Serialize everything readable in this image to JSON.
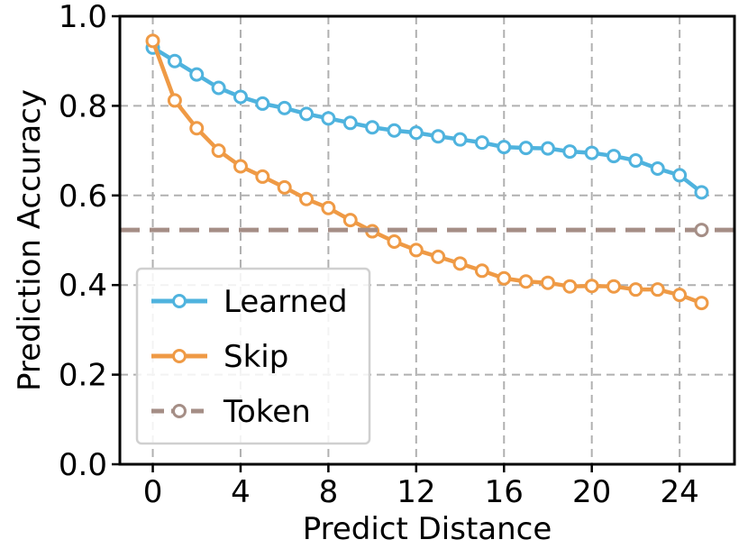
{
  "chart_data": {
    "type": "line",
    "title": "",
    "xlabel": "Predict Distance",
    "ylabel": "Prediction Accuracy",
    "xlim": [
      -1.5,
      26.5
    ],
    "ylim": [
      0.0,
      1.0
    ],
    "xticks": [
      0,
      4,
      8,
      12,
      16,
      20,
      24
    ],
    "xtick_labels": [
      "0",
      "4",
      "8",
      "12",
      "16",
      "20",
      "24"
    ],
    "yticks": [
      0.0,
      0.2,
      0.4,
      0.6,
      0.8,
      1.0
    ],
    "ytick_labels": [
      "0.0",
      "0.2",
      "0.4",
      "0.6",
      "0.8",
      "1.0"
    ],
    "grid": true,
    "legend_position": "lower-left",
    "series": [
      {
        "name": "Learned",
        "color": "#4fb3de",
        "style": "solid",
        "x": [
          0,
          1,
          2,
          3,
          4,
          5,
          6,
          7,
          8,
          9,
          10,
          11,
          12,
          13,
          14,
          15,
          16,
          17,
          18,
          19,
          20,
          21,
          22,
          23,
          24,
          25
        ],
        "values": [
          0.93,
          0.9,
          0.87,
          0.84,
          0.82,
          0.805,
          0.795,
          0.782,
          0.772,
          0.762,
          0.752,
          0.745,
          0.74,
          0.732,
          0.725,
          0.718,
          0.708,
          0.706,
          0.705,
          0.698,
          0.695,
          0.688,
          0.678,
          0.66,
          0.645,
          0.607
        ]
      },
      {
        "name": "Skip",
        "color": "#ef9a45",
        "style": "solid",
        "x": [
          0,
          1,
          2,
          3,
          4,
          5,
          6,
          7,
          8,
          9,
          10,
          11,
          12,
          13,
          14,
          15,
          16,
          17,
          18,
          19,
          20,
          21,
          22,
          23,
          24,
          25
        ],
        "values": [
          0.945,
          0.812,
          0.75,
          0.7,
          0.665,
          0.642,
          0.618,
          0.592,
          0.572,
          0.545,
          0.52,
          0.497,
          0.478,
          0.463,
          0.448,
          0.432,
          0.415,
          0.408,
          0.405,
          0.397,
          0.398,
          0.397,
          0.39,
          0.39,
          0.378,
          0.36
        ]
      },
      {
        "name": "Token",
        "color": "#a58e86",
        "style": "dashed",
        "x": [
          25
        ],
        "values": [
          0.523
        ],
        "hline": 0.523
      }
    ]
  }
}
